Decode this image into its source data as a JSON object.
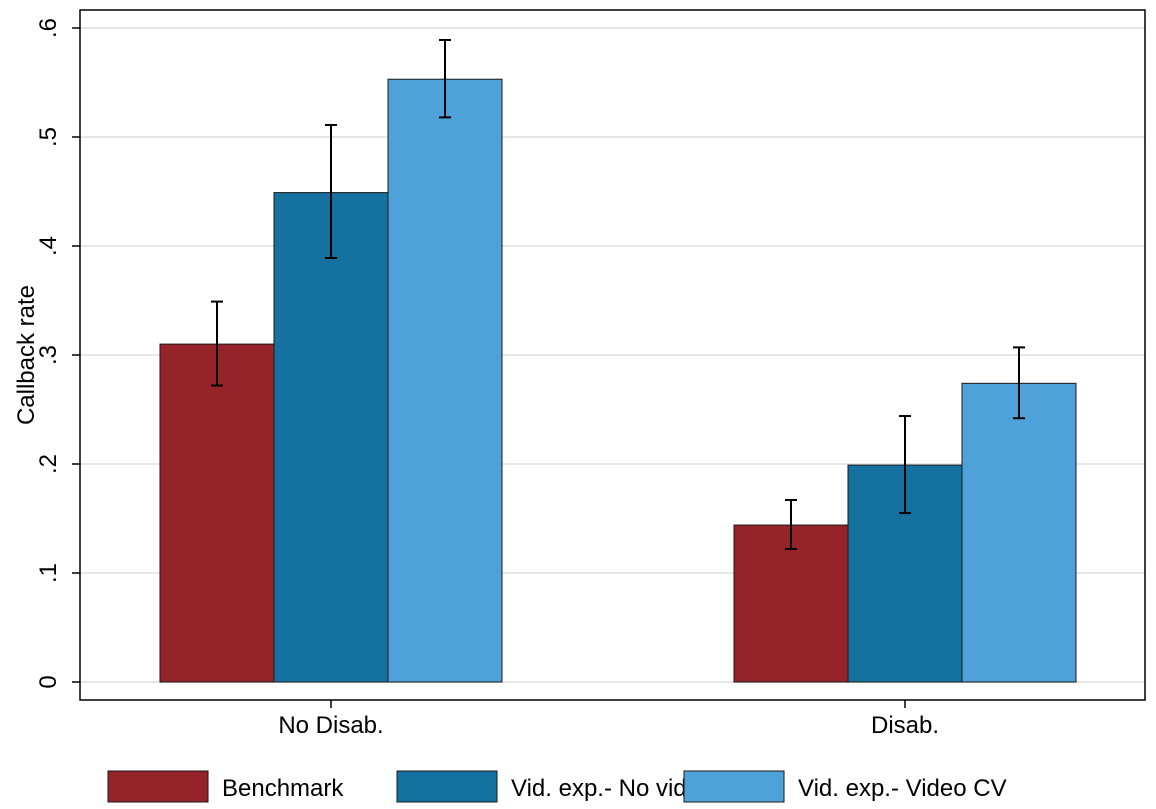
{
  "chart_data": {
    "type": "bar",
    "title": "",
    "xlabel": "",
    "ylabel": "Callback rate",
    "ylim": [
      0,
      0.6
    ],
    "yticks": [
      0,
      0.1,
      0.2,
      0.3,
      0.4,
      0.5,
      0.6
    ],
    "ytick_labels": [
      "0",
      ".1",
      ".2",
      ".3",
      ".4",
      ".5",
      ".6"
    ],
    "grid": true,
    "legend_position": "bottom",
    "categories": [
      "No Disab.",
      "Disab."
    ],
    "series": [
      {
        "name": "Benchmark",
        "color": "#962329",
        "values": [
          0.31,
          0.144
        ],
        "ci_low": [
          0.272,
          0.122
        ],
        "ci_high": [
          0.349,
          0.167
        ]
      },
      {
        "name": "Vid. exp.- No video",
        "color": "#15719F",
        "values": [
          0.449,
          0.199
        ],
        "ci_low": [
          0.389,
          0.155
        ],
        "ci_high": [
          0.511,
          0.244
        ]
      },
      {
        "name": "Vid. exp.- Video CV",
        "color": "#4EA2D9",
        "values": [
          0.553,
          0.274
        ],
        "ci_low": [
          0.518,
          0.242
        ],
        "ci_high": [
          0.589,
          0.307
        ]
      }
    ]
  }
}
